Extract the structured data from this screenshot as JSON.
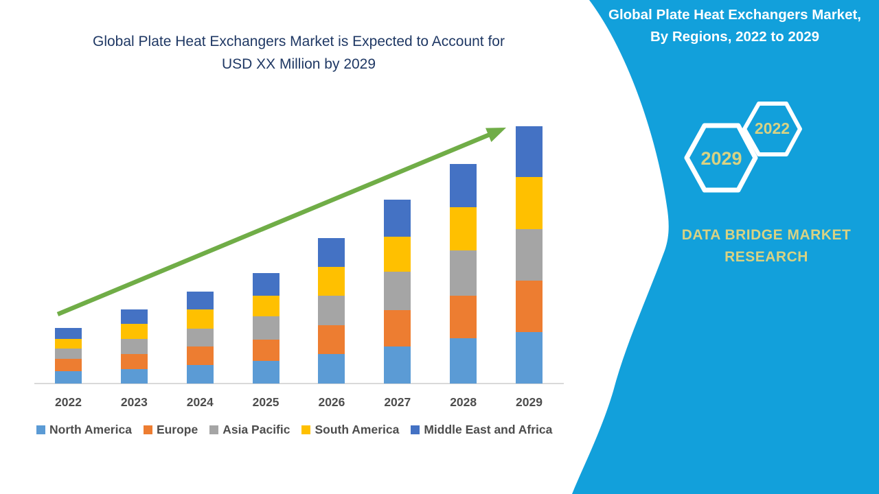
{
  "chart": {
    "title_line1": "Global Plate Heat Exchangers Market is Expected to Account for",
    "title_line2": "USD XX Million by 2029",
    "title_color": "#1F3864"
  },
  "chart_data": {
    "type": "bar",
    "stacked": true,
    "title": "Global Plate Heat Exchangers Market is Expected to Account for USD XX Million by 2029",
    "categories": [
      "2022",
      "2023",
      "2024",
      "2025",
      "2026",
      "2027",
      "2028",
      "2029"
    ],
    "series": [
      {
        "name": "North America",
        "color": "#5B9BD5",
        "values": [
          18,
          21,
          27,
          33,
          43,
          54,
          66,
          75
        ]
      },
      {
        "name": "Europe",
        "color": "#ED7D31",
        "values": [
          18,
          22,
          27,
          31,
          42,
          53,
          62,
          75
        ]
      },
      {
        "name": "Asia Pacific",
        "color": "#A5A5A5",
        "values": [
          15,
          22,
          26,
          34,
          43,
          56,
          66,
          75
        ]
      },
      {
        "name": "South America",
        "color": "#FFC000",
        "values": [
          14,
          22,
          28,
          30,
          42,
          51,
          63,
          76
        ]
      },
      {
        "name": "Middle East and Africa",
        "color": "#4472C4",
        "values": [
          16,
          21,
          26,
          33,
          42,
          54,
          63,
          74
        ]
      }
    ],
    "totals": [
      81,
      108,
      134,
      161,
      212,
      268,
      320,
      375
    ],
    "units": "relative index (actual values unlabeled, shown as USD XX Million)",
    "xlabel": "",
    "ylabel": "",
    "ylim": [
      0,
      400
    ],
    "grid": false,
    "y_axis_visible": false,
    "legend_position": "bottom",
    "trend_arrow": {
      "color": "#70AD47",
      "from_category": "2022",
      "to_category": "2029",
      "direction": "up-right"
    }
  },
  "sidebar": {
    "background_color": "#12A0DB",
    "title_line1": "Global Plate Heat Exchangers Market,",
    "title_line2": "By Regions, 2022 to 2029",
    "hexagon_small_label": "2022",
    "hexagon_large_label": "2029",
    "brand_line1": "DATA BRIDGE MARKET",
    "brand_line2": "RESEARCH",
    "accent_text_color": "#D8D283"
  }
}
